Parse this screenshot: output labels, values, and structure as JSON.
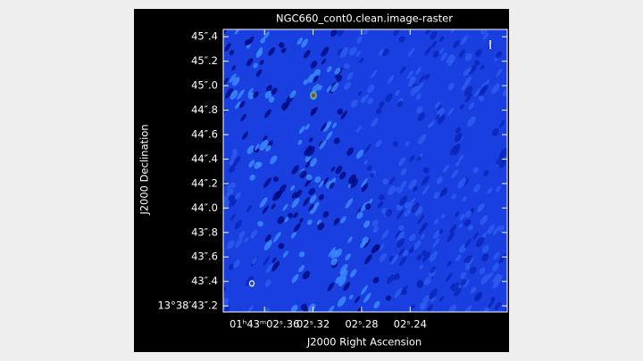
{
  "chart_data": {
    "type": "raster",
    "title": "NGC660_cont0.clean.image-raster",
    "x_label": "J2000 Right Ascension",
    "y_label": "J2000 Declination",
    "xlim": [
      2.394,
      2.16
    ],
    "ylim": [
      43.15,
      45.46
    ],
    "xticks": [
      {
        "value": 2.36,
        "label": "01ʰ43ᵐ02ˢ.36"
      },
      {
        "value": 2.32,
        "label": "02ˢ.32"
      },
      {
        "value": 2.28,
        "label": "02ˢ.28"
      },
      {
        "value": 2.24,
        "label": "02ˢ.24"
      }
    ],
    "yticks": [
      {
        "value": 43.2,
        "label": "13°38′43″.2"
      },
      {
        "value": 43.4,
        "label": "43″.4"
      },
      {
        "value": 43.6,
        "label": "43″.6"
      },
      {
        "value": 43.8,
        "label": "43″.8"
      },
      {
        "value": 44.0,
        "label": "44″.0"
      },
      {
        "value": 44.2,
        "label": "44″.2"
      },
      {
        "value": 44.4,
        "label": "44″.4"
      },
      {
        "value": 44.6,
        "label": "44″.6"
      },
      {
        "value": 44.8,
        "label": "44″.8"
      },
      {
        "value": 45.0,
        "label": "45″.0"
      },
      {
        "value": 45.2,
        "label": "45″.2"
      },
      {
        "value": 45.4,
        "label": "45″.4"
      }
    ]
  }
}
